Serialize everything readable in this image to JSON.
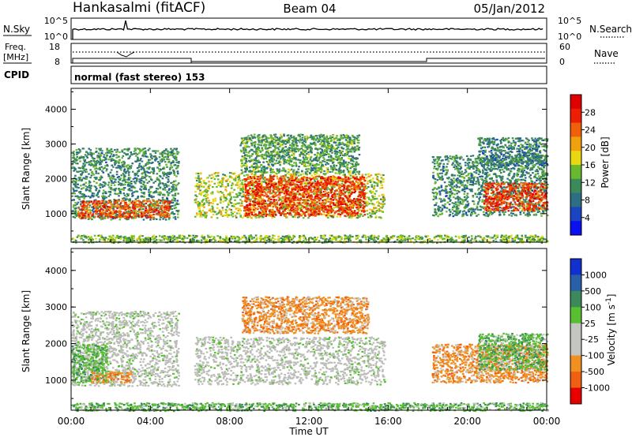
{
  "header": {
    "station": "Hankasalmi (fitACF)",
    "beam": "Beam 04",
    "date": "05/Jan/2012"
  },
  "noise_panel": {
    "left_label": "N.Sky",
    "right_label": "N.Search",
    "left_ticks": [
      "10^5",
      "10^0"
    ],
    "right_ticks": [
      "10^5",
      "10^0"
    ]
  },
  "freq_panel": {
    "left_label_line1": "Freq.",
    "left_label_line2": "[MHz]",
    "left_ticks": [
      "18",
      "8"
    ],
    "right_label": "Nave",
    "right_ticks": [
      "60",
      "0"
    ]
  },
  "cpid": {
    "label": "CPID",
    "text": "normal (fast stereo) 153"
  },
  "x_axis": {
    "label": "Time UT",
    "ticks": [
      "00:00",
      "04:00",
      "08:00",
      "12:00",
      "16:00",
      "20:00",
      "00:00"
    ]
  },
  "colors": {
    "power_scale": [
      "#0a10f0",
      "#1a44c0",
      "#2e6e82",
      "#3c8a5a",
      "#68b830",
      "#e8d812",
      "#f0a00c",
      "#f06008",
      "#ee1e06",
      "#e00000"
    ],
    "velocity_scale": [
      "#1030d0",
      "#2a60a8",
      "#3c8a5a",
      "#58c030",
      "#c4c4c0",
      "#c4c4c0",
      "#f09020",
      "#f06010",
      "#e80000"
    ],
    "gray_scatter": "#bcbcb8"
  },
  "chart_data": [
    {
      "type": "heatmap",
      "name": "power",
      "ylabel": "Slant Range [km]",
      "xlabel": "",
      "ylim": [
        180,
        4600
      ],
      "yticks": [
        "1000",
        "2000",
        "3000",
        "4000"
      ],
      "colorbar": {
        "label": "Power [dB]",
        "range": [
          0,
          32
        ],
        "ticks": [
          "4",
          "8",
          "12",
          "16",
          "20",
          "24",
          "28"
        ]
      },
      "regions": [
        {
          "t0": 0.0,
          "t1": 5.4,
          "r0": 850,
          "r1": 2900,
          "level": 10
        },
        {
          "t0": 0.3,
          "t1": 5.0,
          "r0": 900,
          "r1": 1400,
          "level": 26
        },
        {
          "t0": 6.2,
          "t1": 15.8,
          "r0": 900,
          "r1": 2200,
          "level": 16
        },
        {
          "t0": 8.7,
          "t1": 14.8,
          "r0": 950,
          "r1": 2100,
          "level": 27
        },
        {
          "t0": 8.5,
          "t1": 14.5,
          "r0": 2200,
          "r1": 3300,
          "level": 12
        },
        {
          "t0": 18.2,
          "t1": 24.0,
          "r0": 950,
          "r1": 2700,
          "level": 10
        },
        {
          "t0": 20.8,
          "t1": 24.0,
          "r0": 1100,
          "r1": 1900,
          "level": 27
        },
        {
          "t0": 20.5,
          "t1": 24.0,
          "r0": 2400,
          "r1": 3200,
          "level": 9
        },
        {
          "t0": 0.0,
          "t1": 24.0,
          "r0": 180,
          "r1": 400,
          "level": 14
        }
      ]
    },
    {
      "type": "heatmap",
      "name": "velocity",
      "ylabel": "Slant Range [km]",
      "xlabel": "Time UT",
      "ylim": [
        180,
        4600
      ],
      "yticks": [
        "1000",
        "2000",
        "3000",
        "4000"
      ],
      "colorbar": {
        "label": "Velocity [m s^-1]",
        "ticks": [
          "1000",
          "500",
          "100",
          "25",
          "-25",
          "-100",
          "-500",
          "-1000"
        ]
      },
      "regions": [
        {
          "t0": 0.0,
          "t1": 5.4,
          "r0": 850,
          "r1": 2900,
          "class": "gray"
        },
        {
          "t0": 0.0,
          "t1": 1.8,
          "r0": 950,
          "r1": 2000,
          "class": "green"
        },
        {
          "t0": 1.0,
          "t1": 3.0,
          "r0": 950,
          "r1": 1250,
          "class": "orange"
        },
        {
          "t0": 6.2,
          "t1": 15.8,
          "r0": 900,
          "r1": 2200,
          "class": "gray"
        },
        {
          "t0": 8.6,
          "t1": 15.0,
          "r0": 2300,
          "r1": 3300,
          "class": "orange"
        },
        {
          "t0": 18.2,
          "t1": 24.0,
          "r0": 950,
          "r1": 2000,
          "class": "orange"
        },
        {
          "t0": 20.5,
          "t1": 24.0,
          "r0": 1300,
          "r1": 2300,
          "class": "green"
        },
        {
          "t0": 0.0,
          "t1": 24.0,
          "r0": 180,
          "r1": 400,
          "class": "green"
        }
      ]
    }
  ]
}
